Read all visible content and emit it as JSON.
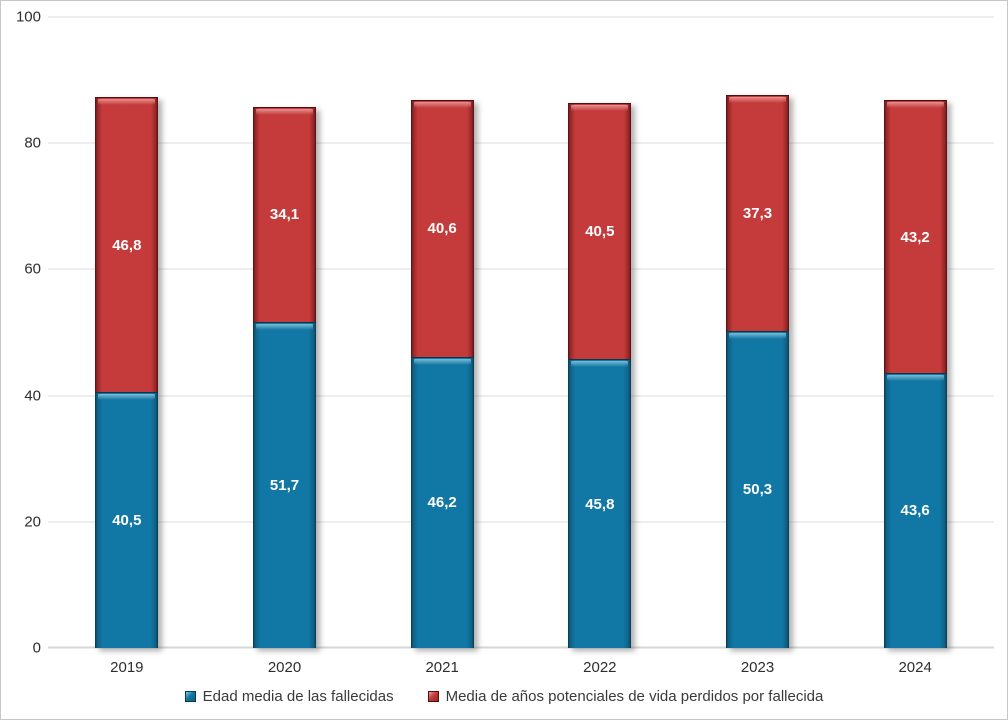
{
  "chart_data": {
    "type": "bar",
    "stacked": true,
    "grid": true,
    "legend_position": "bottom",
    "ylim": [
      0,
      100
    ],
    "y_ticks": [
      0,
      20,
      40,
      60,
      80,
      100
    ],
    "categories": [
      "2019",
      "2020",
      "2021",
      "2022",
      "2023",
      "2024"
    ],
    "series": [
      {
        "name": "Edad media de las fallecidas",
        "color": {
          "fill": "#1177A4",
          "mid": "#0F5E80",
          "edge": "#09374D",
          "light": "#8CC8E0"
        },
        "values": [
          40.5,
          51.7,
          46.2,
          45.8,
          50.3,
          43.6
        ],
        "labels": [
          "40,5",
          "51,7",
          "46,2",
          "45,8",
          "50,3",
          "43,6"
        ]
      },
      {
        "name": "Media de años potenciales de vida perdidos por fallecida",
        "color": {
          "fill": "#C53A3A",
          "mid": "#922527",
          "edge": "#4E0F10",
          "light": "#EBA0A0"
        },
        "values": [
          46.8,
          34.1,
          40.6,
          40.5,
          37.3,
          43.2
        ],
        "labels": [
          "46,8",
          "34,1",
          "40,6",
          "40,5",
          "37,3",
          "43,2"
        ]
      }
    ]
  }
}
